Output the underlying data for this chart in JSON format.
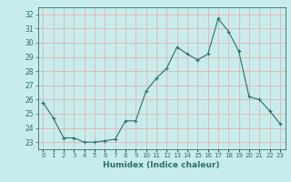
{
  "x": [
    0,
    1,
    2,
    3,
    4,
    5,
    6,
    7,
    8,
    9,
    10,
    11,
    12,
    13,
    14,
    15,
    16,
    17,
    18,
    19,
    20,
    21,
    22,
    23
  ],
  "y": [
    25.8,
    24.7,
    23.3,
    23.3,
    23.0,
    23.0,
    23.1,
    23.2,
    24.5,
    24.5,
    26.6,
    27.5,
    28.2,
    29.7,
    29.2,
    28.8,
    29.2,
    31.7,
    30.8,
    29.4,
    26.2,
    26.0,
    25.2,
    24.3
  ],
  "line_color": "#2d6e6e",
  "marker": "+",
  "bg_color": "#c8ecec",
  "grid_color": "#b0d8d8",
  "xlabel": "Humidex (Indice chaleur)",
  "ylim": [
    22.5,
    32.5
  ],
  "xlim": [
    -0.5,
    23.5
  ],
  "yticks": [
    23,
    24,
    25,
    26,
    27,
    28,
    29,
    30,
    31,
    32
  ],
  "xtick_labels": [
    "0",
    "1",
    "2",
    "3",
    "4",
    "5",
    "6",
    "7",
    "8",
    "9",
    "10",
    "11",
    "12",
    "13",
    "14",
    "15",
    "16",
    "17",
    "18",
    "19",
    "20",
    "21",
    "22",
    "23"
  ],
  "axis_color": "#2d6e6e",
  "tick_color": "#2d6e6e",
  "label_color": "#2d6e6e",
  "grid_major_color": "#e8a0a0",
  "grid_minor_color": "#c8ecec"
}
